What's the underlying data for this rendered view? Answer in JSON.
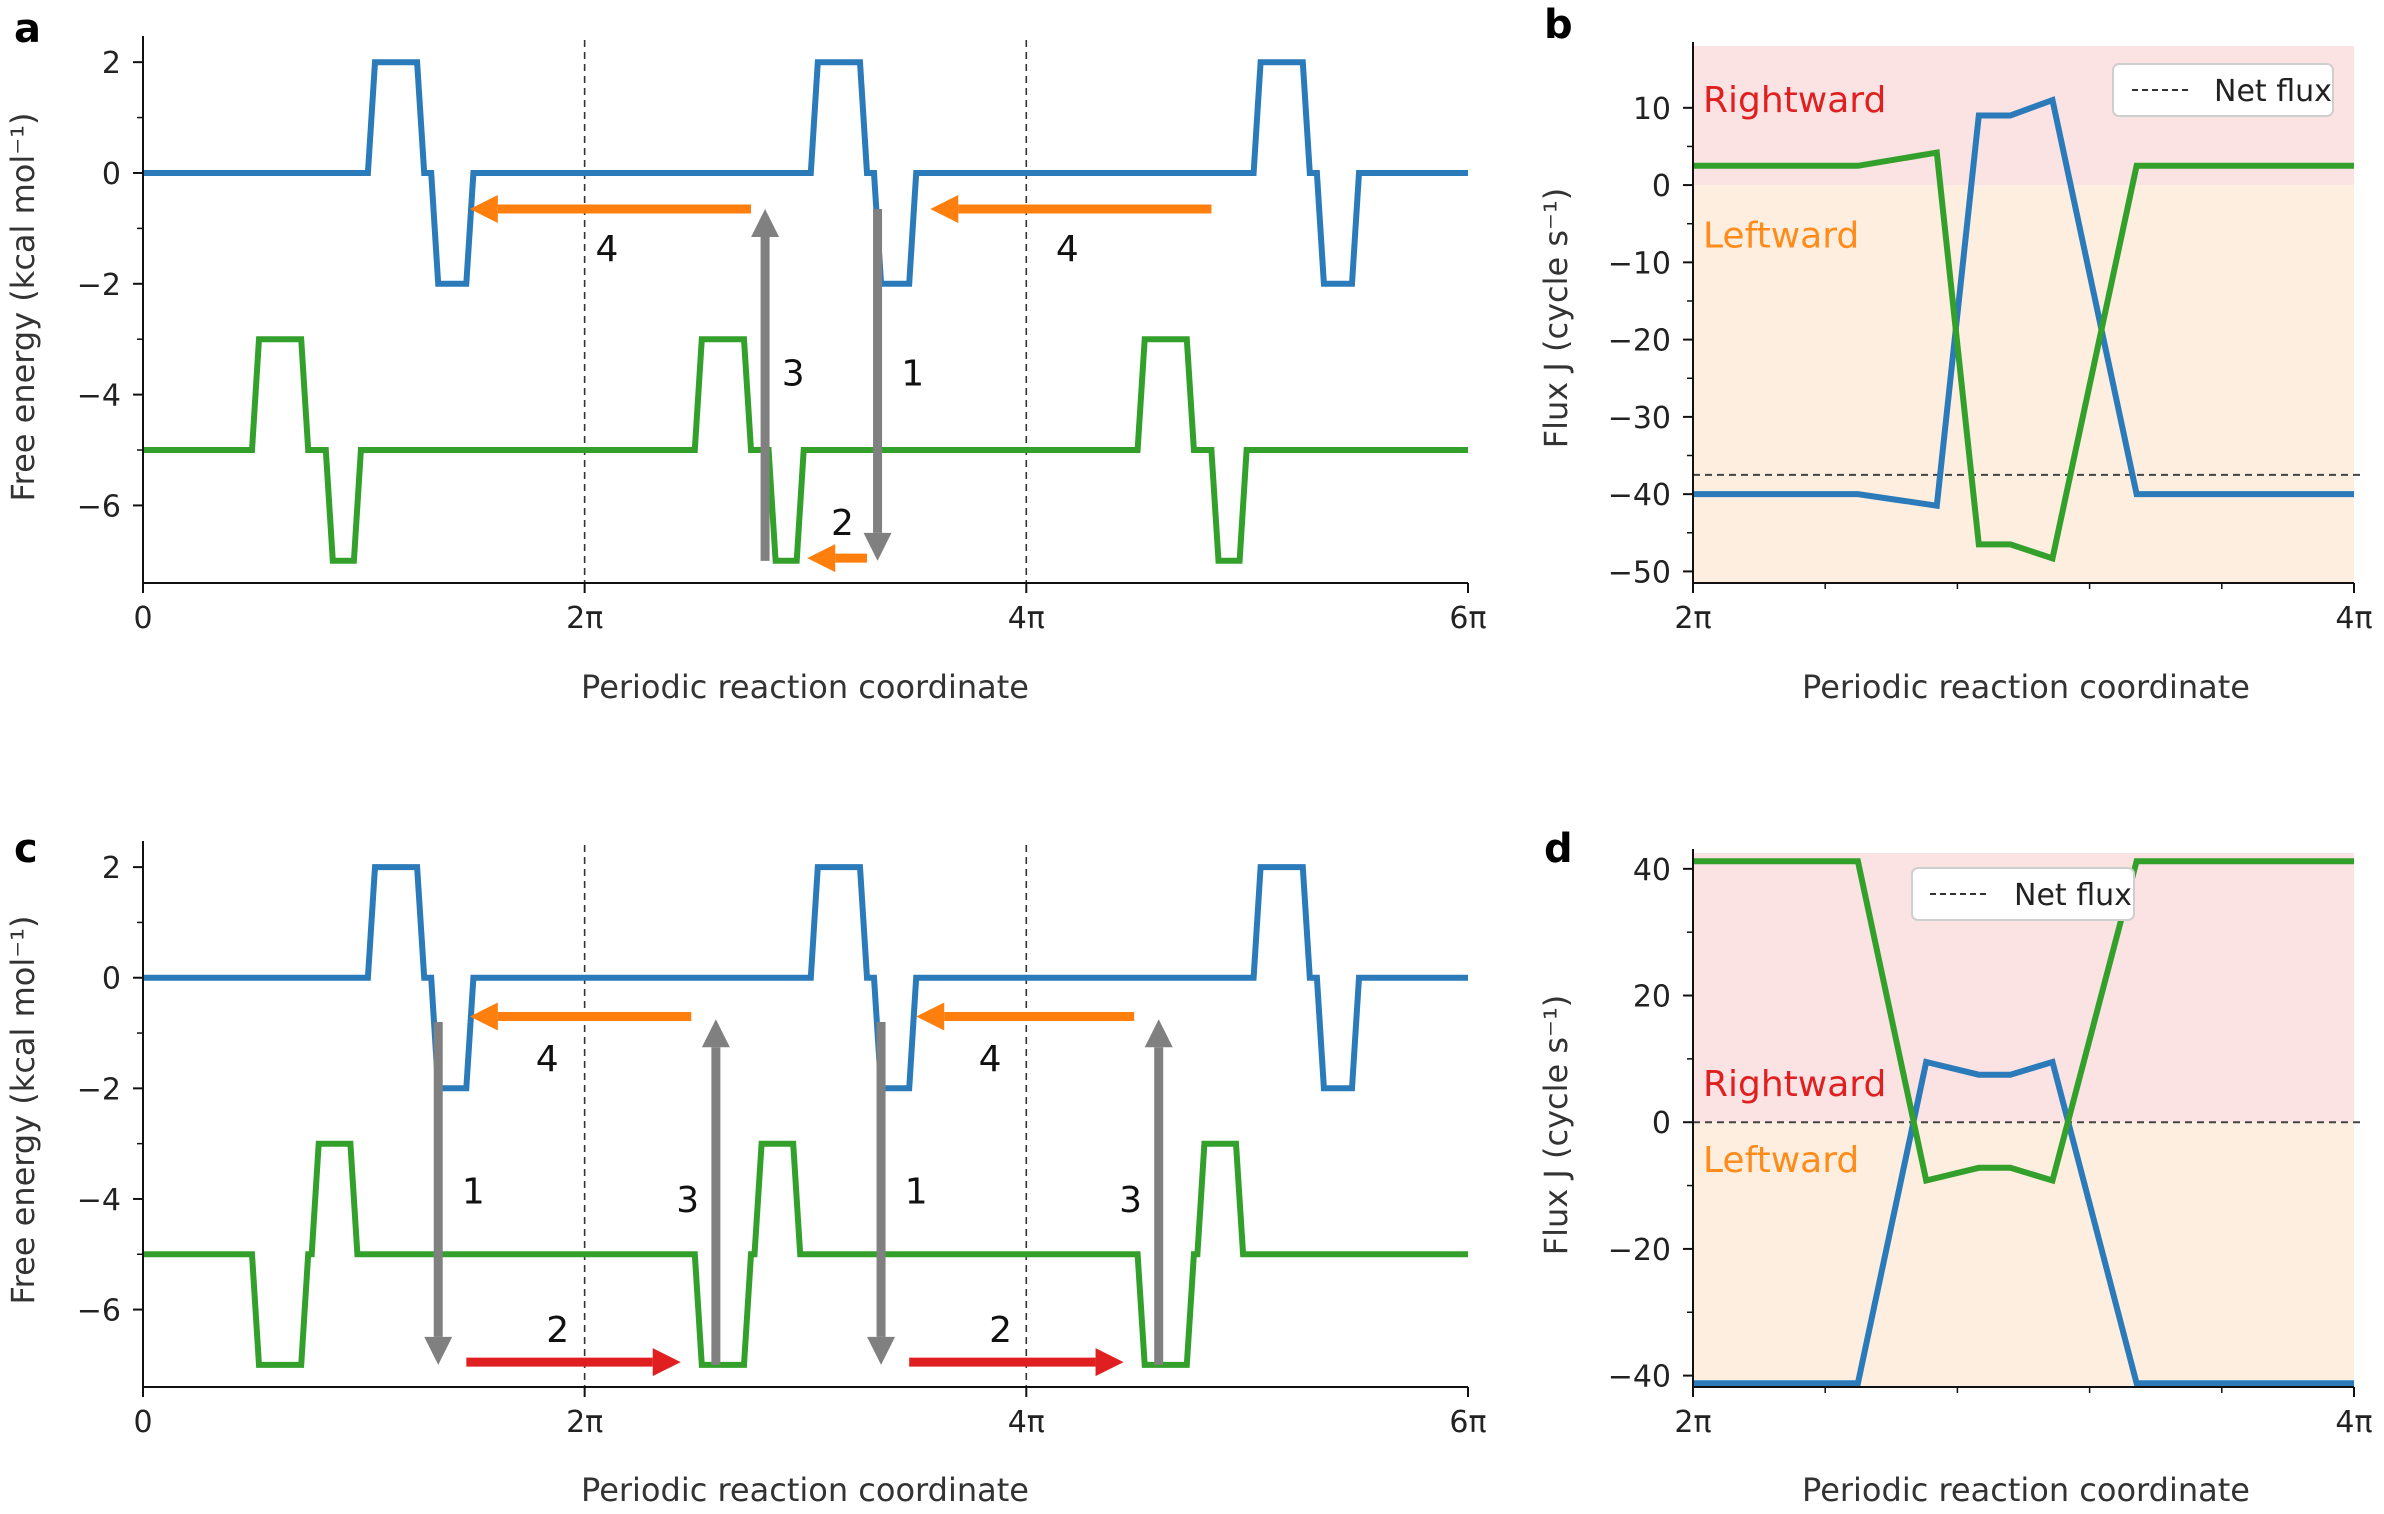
{
  "colors": {
    "blue": "#2b7bba",
    "green": "#33a02c",
    "orange": "#ff7f0e",
    "red": "#e02020",
    "gray": "#808080",
    "rightward_bg": "#fbe3e3",
    "leftward_bg": "#fdeee0",
    "rightward_text": "#e02020",
    "leftward_text": "#ff8c1a"
  },
  "panels": [
    {
      "letter": "a"
    },
    {
      "letter": "b"
    },
    {
      "letter": "c"
    },
    {
      "letter": "d"
    }
  ],
  "chart_data": [
    {
      "panel": "a",
      "type": "line",
      "xlabel": "Periodic reaction coordinate",
      "ylabel": "Free energy (kcal mol⁻¹)",
      "xlim": [
        0,
        18.85
      ],
      "ylim": [
        -7.4,
        2.4
      ],
      "xticks": [
        {
          "value": 0,
          "label": "0"
        },
        {
          "value": 6.283,
          "label": "2π"
        },
        {
          "value": 12.566,
          "label": "4π"
        },
        {
          "value": 18.85,
          "label": "6π"
        }
      ],
      "yticks": [
        {
          "value": 2,
          "label": "2"
        },
        {
          "value": 0,
          "label": "0"
        },
        {
          "value": -2,
          "label": "−2"
        },
        {
          "value": -4,
          "label": "−4"
        },
        {
          "value": -6,
          "label": "−6"
        }
      ],
      "vlines": [
        6.283,
        12.566
      ],
      "series": [
        {
          "color_key": "blue",
          "x": [
            0,
            3.2,
            3.3,
            3.9,
            4.0,
            4.1,
            4.2,
            4.6,
            4.7,
            6.283,
            9.5,
            9.6,
            10.2,
            10.3,
            10.4,
            10.5,
            10.9,
            11.0,
            12.566,
            15.8,
            15.9,
            16.5,
            16.6,
            16.7,
            16.8,
            17.2,
            17.3,
            18.85
          ],
          "y": [
            0,
            0,
            2,
            2,
            0,
            0,
            -2,
            -2,
            0,
            0,
            0,
            2,
            2,
            0,
            0,
            -2,
            -2,
            0,
            0,
            0,
            2,
            2,
            0,
            0,
            -2,
            -2,
            0,
            0
          ]
        },
        {
          "color_key": "green",
          "x": [
            0,
            1.55,
            1.65,
            2.25,
            2.35,
            2.6,
            2.7,
            3.0,
            3.1,
            6.283,
            7.85,
            7.95,
            8.55,
            8.65,
            8.9,
            9.0,
            9.3,
            9.4,
            12.566,
            14.15,
            14.25,
            14.85,
            14.95,
            15.2,
            15.3,
            15.6,
            15.7,
            18.85
          ],
          "y": [
            -5,
            -5,
            -3,
            -3,
            -5,
            -5,
            -7,
            -7,
            -5,
            -5,
            -5,
            -3,
            -3,
            -5,
            -5,
            -7,
            -7,
            -5,
            -5,
            -5,
            -3,
            -3,
            -5,
            -5,
            -7,
            -7,
            -5,
            -5
          ]
        }
      ],
      "arrows": [
        {
          "color_key": "orange",
          "x1": 8.65,
          "y1": -0.65,
          "x2": 4.65,
          "y2": -0.65,
          "label": "4",
          "lx": 6.6,
          "ly": -1.35
        },
        {
          "color_key": "orange",
          "x1": 15.2,
          "y1": -0.65,
          "x2": 11.2,
          "y2": -0.65,
          "label": "4",
          "lx": 13.15,
          "ly": -1.35
        },
        {
          "color_key": "gray",
          "x1": 8.85,
          "y1": -7.0,
          "x2": 8.85,
          "y2": -0.65,
          "label": "3",
          "lx": 9.25,
          "ly": -3.6
        },
        {
          "color_key": "gray",
          "x1": 10.45,
          "y1": -0.65,
          "x2": 10.45,
          "y2": -7.0,
          "label": "1",
          "lx": 10.95,
          "ly": -3.6
        },
        {
          "color_key": "orange",
          "x1": 10.3,
          "y1": -6.95,
          "x2": 9.45,
          "y2": -6.95,
          "label": "2",
          "lx": 9.95,
          "ly": -6.3
        }
      ]
    },
    {
      "panel": "b",
      "type": "line",
      "xlabel": "Periodic reaction coordinate",
      "ylabel": "Flux J (cycle s⁻¹)",
      "xlim": [
        6.283,
        12.566
      ],
      "ylim": [
        -51.5,
        18
      ],
      "xticks": [
        {
          "value": 6.283,
          "label": "2π"
        },
        {
          "value": 12.566,
          "label": "4π"
        }
      ],
      "yticks": [
        {
          "value": 10,
          "label": "10"
        },
        {
          "value": 0,
          "label": "0"
        },
        {
          "value": -10,
          "label": "−10"
        },
        {
          "value": -20,
          "label": "−20"
        },
        {
          "value": -30,
          "label": "−30"
        },
        {
          "value": -40,
          "label": "−40"
        },
        {
          "value": -50,
          "label": "−50"
        }
      ],
      "net_flux": -37.5,
      "legend": "Net flux",
      "legend_position": "top-right",
      "region_labels": {
        "rightward": "Rightward",
        "leftward": "Leftward",
        "rightward_y": 11,
        "leftward_y": -6.5
      },
      "series": [
        {
          "color_key": "blue",
          "x": [
            6.283,
            7.85,
            8.6,
            9.0,
            9.3,
            9.7,
            10.5,
            12.566
          ],
          "y": [
            -40,
            -40,
            -41.5,
            9,
            9,
            11,
            -40,
            -40
          ]
        },
        {
          "color_key": "green",
          "x": [
            6.283,
            7.85,
            8.6,
            9.0,
            9.3,
            9.7,
            10.5,
            12.566
          ],
          "y": [
            2.5,
            2.5,
            4.2,
            -46.5,
            -46.5,
            -48.3,
            2.5,
            2.5
          ]
        }
      ]
    },
    {
      "panel": "c",
      "type": "line",
      "xlabel": "Periodic reaction coordinate",
      "ylabel": "Free energy (kcal mol⁻¹)",
      "xlim": [
        0,
        18.85
      ],
      "ylim": [
        -7.4,
        2.4
      ],
      "xticks": [
        {
          "value": 0,
          "label": "0"
        },
        {
          "value": 6.283,
          "label": "2π"
        },
        {
          "value": 12.566,
          "label": "4π"
        },
        {
          "value": 18.85,
          "label": "6π"
        }
      ],
      "yticks": [
        {
          "value": 2,
          "label": "2"
        },
        {
          "value": 0,
          "label": "0"
        },
        {
          "value": -2,
          "label": "−2"
        },
        {
          "value": -4,
          "label": "−4"
        },
        {
          "value": -6,
          "label": "−6"
        }
      ],
      "vlines": [
        6.283,
        12.566
      ],
      "series": [
        {
          "color_key": "blue",
          "x": [
            0,
            3.2,
            3.3,
            3.9,
            4.0,
            4.1,
            4.2,
            4.6,
            4.7,
            6.283,
            9.5,
            9.6,
            10.2,
            10.3,
            10.4,
            10.5,
            10.9,
            11.0,
            12.566,
            15.8,
            15.9,
            16.5,
            16.6,
            16.7,
            16.8,
            17.2,
            17.3,
            18.85
          ],
          "y": [
            0,
            0,
            2,
            2,
            0,
            0,
            -2,
            -2,
            0,
            0,
            0,
            2,
            2,
            0,
            0,
            -2,
            -2,
            0,
            0,
            0,
            2,
            2,
            0,
            0,
            -2,
            -2,
            0,
            0
          ]
        },
        {
          "color_key": "green",
          "x": [
            0,
            1.55,
            1.65,
            2.25,
            2.35,
            2.4,
            2.5,
            2.95,
            3.05,
            6.283,
            7.85,
            7.95,
            8.55,
            8.65,
            8.7,
            8.8,
            9.25,
            9.35,
            12.566,
            14.15,
            14.25,
            14.85,
            14.95,
            15.0,
            15.1,
            15.55,
            15.65,
            18.85
          ],
          "y": [
            -5,
            -5,
            -7,
            -7,
            -5,
            -5,
            -3,
            -3,
            -5,
            -5,
            -5,
            -7,
            -7,
            -5,
            -5,
            -3,
            -3,
            -5,
            -5,
            -5,
            -7,
            -7,
            -5,
            -5,
            -3,
            -3,
            -5,
            -5
          ]
        }
      ],
      "arrows": [
        {
          "color_key": "orange",
          "x1": 7.8,
          "y1": -0.7,
          "x2": 4.65,
          "y2": -0.7,
          "label": "4",
          "lx": 5.75,
          "ly": -1.45
        },
        {
          "color_key": "orange",
          "x1": 14.1,
          "y1": -0.7,
          "x2": 11.0,
          "y2": -0.7,
          "label": "4",
          "lx": 12.05,
          "ly": -1.45
        },
        {
          "color_key": "gray",
          "x1": 4.2,
          "y1": -0.8,
          "x2": 4.2,
          "y2": -7.0,
          "label": "1",
          "lx": 4.7,
          "ly": -3.85
        },
        {
          "color_key": "gray",
          "x1": 10.5,
          "y1": -0.8,
          "x2": 10.5,
          "y2": -7.0,
          "label": "1",
          "lx": 11.0,
          "ly": -3.85
        },
        {
          "color_key": "gray",
          "x1": 8.15,
          "y1": -7.0,
          "x2": 8.15,
          "y2": -0.75,
          "label": "3",
          "lx": 7.75,
          "ly": -4.0
        },
        {
          "color_key": "gray",
          "x1": 14.45,
          "y1": -7.0,
          "x2": 14.45,
          "y2": -0.75,
          "label": "3",
          "lx": 14.05,
          "ly": -4.0
        },
        {
          "color_key": "red",
          "x1": 4.6,
          "y1": -6.95,
          "x2": 7.65,
          "y2": -6.95,
          "label": "2",
          "lx": 5.9,
          "ly": -6.35
        },
        {
          "color_key": "red",
          "x1": 10.9,
          "y1": -6.95,
          "x2": 13.95,
          "y2": -6.95,
          "label": "2",
          "lx": 12.2,
          "ly": -6.35
        }
      ]
    },
    {
      "panel": "d",
      "type": "line",
      "xlabel": "Periodic reaction coordinate",
      "ylabel": "Flux J (cycle s⁻¹)",
      "xlim": [
        6.283,
        12.566
      ],
      "ylim": [
        -41.8,
        42.5
      ],
      "xticks": [
        {
          "value": 6.283,
          "label": "2π"
        },
        {
          "value": 12.566,
          "label": "4π"
        }
      ],
      "yticks": [
        {
          "value": 40,
          "label": "40"
        },
        {
          "value": 20,
          "label": "20"
        },
        {
          "value": 0,
          "label": "0"
        },
        {
          "value": -20,
          "label": "−20"
        },
        {
          "value": -40,
          "label": "−40"
        }
      ],
      "net_flux": 0,
      "legend": "Net flux",
      "legend_position": "top-center",
      "region_labels": {
        "rightward": "Rightward",
        "leftward": "Leftward",
        "rightward_y": 6,
        "leftward_y": -6
      },
      "series": [
        {
          "color_key": "blue",
          "x": [
            6.283,
            7.85,
            8.5,
            9.0,
            9.3,
            9.7,
            10.5,
            12.566
          ],
          "y": [
            -41.2,
            -41.2,
            9.5,
            7.5,
            7.5,
            9.5,
            -41.2,
            -41.2
          ]
        },
        {
          "color_key": "green",
          "x": [
            6.283,
            7.85,
            8.5,
            9.0,
            9.3,
            9.7,
            10.5,
            12.566
          ],
          "y": [
            41.2,
            41.2,
            -9.2,
            -7.2,
            -7.2,
            -9.2,
            41.2,
            41.2
          ]
        }
      ]
    }
  ]
}
